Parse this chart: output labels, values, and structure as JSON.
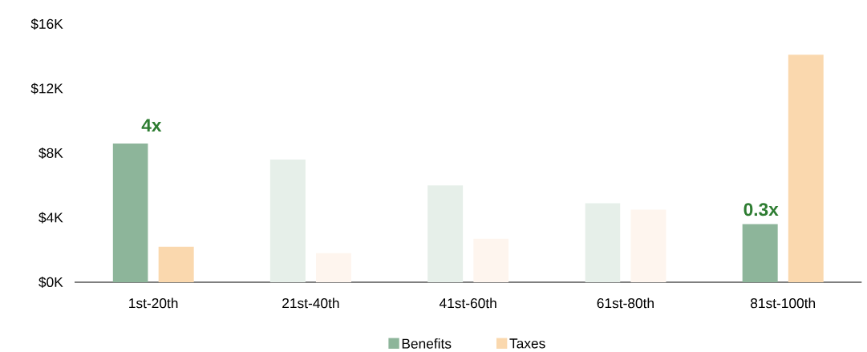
{
  "chart_data": {
    "type": "bar",
    "categories": [
      "1st-20th",
      "21st-40th",
      "41st-60th",
      "61st-80th",
      "81st-100th"
    ],
    "series": [
      {
        "name": "Benefits",
        "color": "#8db59a",
        "colors": [
          "#8db59a",
          "#e6efe9",
          "#e6efe9",
          "#e6efe9",
          "#8db59a"
        ],
        "values": [
          8.6,
          7.6,
          6.0,
          4.9,
          3.6
        ]
      },
      {
        "name": "Taxes",
        "color": "#fad8ae",
        "colors": [
          "#fad8ae",
          "#fef5ee",
          "#fef5ee",
          "#fef5ee",
          "#fad8ae"
        ],
        "values": [
          2.2,
          1.8,
          2.7,
          4.5,
          14.1
        ]
      }
    ],
    "ylim": [
      0,
      16
    ],
    "yticks": [
      {
        "value": 0,
        "label": "$0K"
      },
      {
        "value": 4,
        "label": "$4K"
      },
      {
        "value": 8,
        "label": "$8K"
      },
      {
        "value": 12,
        "label": "$12K"
      },
      {
        "value": 16,
        "label": "$16K"
      }
    ],
    "annotations": [
      "4x",
      "0.3x"
    ],
    "legend": "bottom",
    "grid": false
  }
}
